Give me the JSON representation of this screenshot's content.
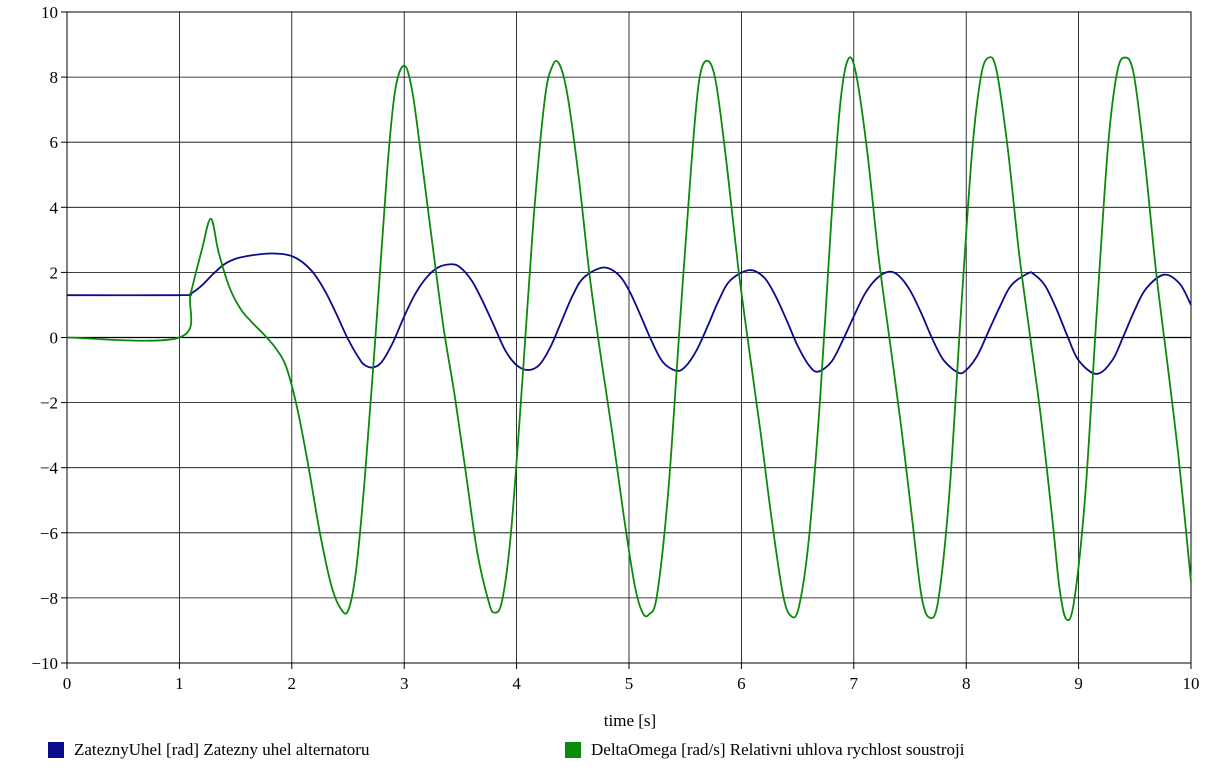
{
  "chart_data": {
    "type": "line",
    "xlabel": "time [s]",
    "ylabel": "",
    "xlim": [
      0,
      10
    ],
    "ylim": [
      -10,
      10
    ],
    "x_ticks": [
      0,
      1,
      2,
      3,
      4,
      5,
      6,
      7,
      8,
      9,
      10
    ],
    "y_ticks": [
      -10,
      -8,
      -6,
      -4,
      -2,
      0,
      2,
      4,
      6,
      8,
      10
    ],
    "x_tick_labels": [
      "0",
      "1",
      "2",
      "3",
      "4",
      "5",
      "6",
      "7",
      "8",
      "9",
      "10"
    ],
    "y_tick_labels": [
      "−10",
      "−8",
      "−6",
      "−4",
      "−2",
      "0",
      "2",
      "4",
      "6",
      "8",
      "10"
    ],
    "grid": true,
    "legend_position": "bottom",
    "series": [
      {
        "name": "ZateznyUhel [rad] Zatezny uhel alternatoru",
        "color": "#0a0a8c",
        "x": [
          0,
          1.0,
          1.1,
          1.2,
          1.3,
          1.4,
          1.5,
          1.6,
          1.7,
          1.8,
          1.9,
          2.0,
          2.1,
          2.2,
          2.3,
          2.4,
          2.5,
          2.6,
          2.65,
          2.72,
          2.8,
          2.9,
          3.0,
          3.1,
          3.2,
          3.3,
          3.42,
          3.5,
          3.6,
          3.7,
          3.8,
          3.9,
          4.0,
          4.1,
          4.2,
          4.3,
          4.4,
          4.5,
          4.6,
          4.77,
          4.9,
          5.0,
          5.1,
          5.2,
          5.3,
          5.42,
          5.5,
          5.6,
          5.7,
          5.8,
          5.9,
          6.07,
          6.2,
          6.3,
          6.4,
          6.5,
          6.6,
          6.68,
          6.8,
          6.9,
          7.0,
          7.1,
          7.2,
          7.31,
          7.4,
          7.5,
          7.6,
          7.7,
          7.8,
          7.93,
          8.0,
          8.1,
          8.2,
          8.3,
          8.4,
          8.55,
          8.6,
          8.7,
          8.8,
          8.9,
          9.0,
          9.16,
          9.3,
          9.4,
          9.5,
          9.6,
          9.76,
          9.9,
          10.0
        ],
        "values": [
          1.3,
          1.3,
          1.35,
          1.6,
          1.95,
          2.25,
          2.42,
          2.5,
          2.55,
          2.58,
          2.57,
          2.5,
          2.3,
          1.95,
          1.4,
          0.7,
          -0.05,
          -0.65,
          -0.85,
          -0.92,
          -0.75,
          -0.15,
          0.65,
          1.35,
          1.85,
          2.15,
          2.25,
          2.15,
          1.75,
          1.1,
          0.35,
          -0.4,
          -0.85,
          -1.0,
          -0.85,
          -0.3,
          0.5,
          1.3,
          1.85,
          2.15,
          1.95,
          1.45,
          0.7,
          -0.1,
          -0.75,
          -1.02,
          -0.9,
          -0.4,
          0.35,
          1.15,
          1.75,
          2.07,
          1.85,
          1.3,
          0.55,
          -0.25,
          -0.85,
          -1.05,
          -0.75,
          -0.1,
          0.65,
          1.35,
          1.8,
          2.02,
          1.9,
          1.45,
          0.75,
          -0.05,
          -0.7,
          -1.08,
          -1.0,
          -0.55,
          0.2,
          0.95,
          1.6,
          1.97,
          1.95,
          1.6,
          0.9,
          0.05,
          -0.7,
          -1.12,
          -0.7,
          0.05,
          0.85,
          1.5,
          1.93,
          1.65,
          1.0
        ]
      },
      {
        "name": "DeltaOmega [rad/s] Relativni uhlova rychlost soustroji",
        "color": "#0a8a0a",
        "x": [
          0,
          1.0,
          1.1,
          1.2,
          1.28,
          1.35,
          1.45,
          1.55,
          1.65,
          1.75,
          1.85,
          1.95,
          2.05,
          2.15,
          2.25,
          2.35,
          2.43,
          2.5,
          2.57,
          2.65,
          2.75,
          2.85,
          2.92,
          3.0,
          3.07,
          3.15,
          3.25,
          3.35,
          3.45,
          3.55,
          3.65,
          3.75,
          3.8,
          3.87,
          3.95,
          4.05,
          4.15,
          4.25,
          4.32,
          4.38,
          4.45,
          4.55,
          4.65,
          4.75,
          4.85,
          4.95,
          5.05,
          5.12,
          5.18,
          5.25,
          5.35,
          5.45,
          5.55,
          5.62,
          5.69,
          5.77,
          5.87,
          5.97,
          6.07,
          6.17,
          6.27,
          6.37,
          6.44,
          6.51,
          6.6,
          6.7,
          6.8,
          6.88,
          6.95,
          7.02,
          7.12,
          7.22,
          7.32,
          7.42,
          7.52,
          7.6,
          7.67,
          7.75,
          7.85,
          7.95,
          8.05,
          8.13,
          8.2,
          8.27,
          8.37,
          8.47,
          8.57,
          8.67,
          8.77,
          8.83,
          8.89,
          8.96,
          9.06,
          9.16,
          9.26,
          9.34,
          9.41,
          9.49,
          9.59,
          9.69,
          9.79,
          9.89,
          10.0
        ],
        "values": [
          0,
          0,
          1.35,
          2.7,
          3.65,
          2.6,
          1.5,
          0.85,
          0.45,
          0.1,
          -0.3,
          -0.9,
          -2.2,
          -4.0,
          -6.0,
          -7.6,
          -8.3,
          -8.4,
          -7.2,
          -4.3,
          0.3,
          5.2,
          7.6,
          8.35,
          7.6,
          5.6,
          2.9,
          0.3,
          -1.8,
          -4.2,
          -6.6,
          -8.1,
          -8.45,
          -8.1,
          -6.0,
          -1.4,
          3.6,
          7.3,
          8.35,
          8.4,
          7.5,
          5.0,
          1.9,
          -0.6,
          -2.9,
          -5.4,
          -7.6,
          -8.45,
          -8.5,
          -7.9,
          -4.7,
          0.3,
          5.1,
          7.8,
          8.5,
          7.9,
          5.3,
          2.2,
          -0.4,
          -2.9,
          -5.6,
          -7.9,
          -8.55,
          -8.3,
          -6.2,
          -1.9,
          3.6,
          7.2,
          8.55,
          8.1,
          5.7,
          2.5,
          -0.1,
          -2.7,
          -5.6,
          -7.9,
          -8.6,
          -8.1,
          -4.8,
          0.6,
          5.6,
          8.0,
          8.6,
          8.2,
          5.8,
          2.6,
          0.0,
          -2.6,
          -5.7,
          -7.7,
          -8.65,
          -8.1,
          -4.8,
          0.7,
          5.8,
          8.1,
          8.6,
          8.1,
          5.4,
          2.0,
          -0.8,
          -3.7,
          -7.5
        ]
      }
    ]
  }
}
